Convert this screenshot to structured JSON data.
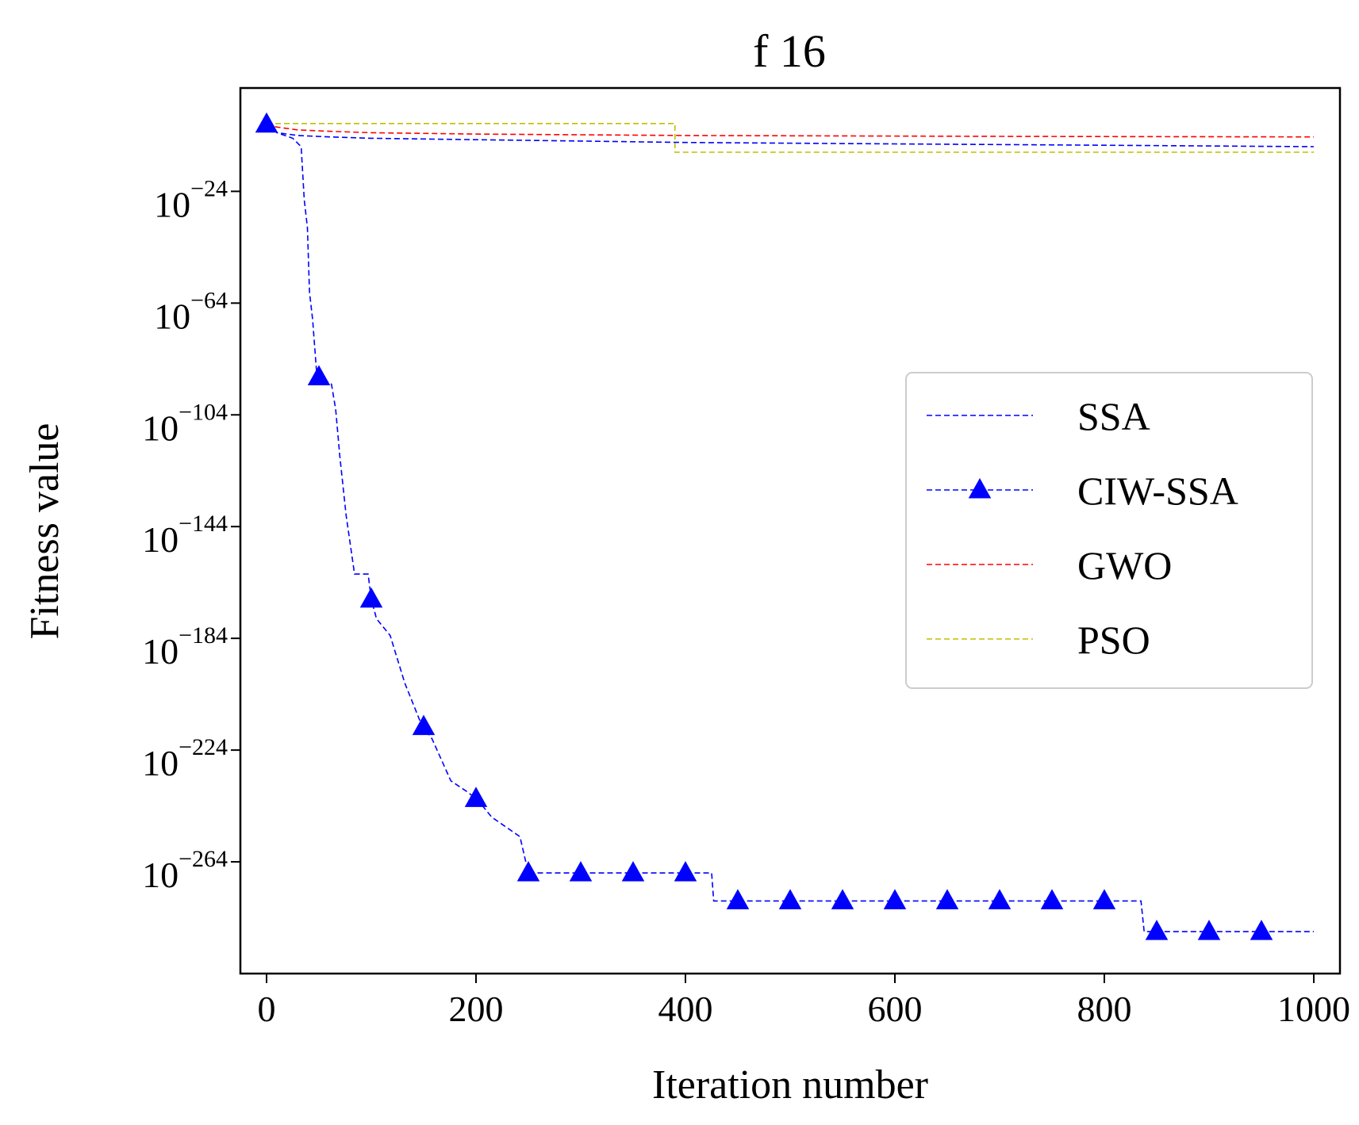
{
  "chart_data": {
    "type": "line",
    "title": "f 16",
    "xlabel": "Iteration number",
    "ylabel": "Fitness value",
    "y_scale": "log",
    "xlim": [
      -25,
      1025
    ],
    "ylim_exponent": [
      -304,
      13
    ],
    "x_ticks": [
      0,
      200,
      400,
      600,
      800,
      1000
    ],
    "x_tick_labels": [
      "0",
      "200",
      "400",
      "600",
      "800",
      "1000"
    ],
    "y_ticks_exponent": [
      -24,
      -64,
      -104,
      -144,
      -184,
      -224,
      -264
    ],
    "y_tick_base": "10",
    "y_tick_exponent_labels": [
      "−24",
      "−64",
      "−104",
      "−144",
      "−184",
      "−224",
      "−264"
    ],
    "grid": false,
    "legend_position": "center-right",
    "series": [
      {
        "name": "SSA",
        "color": "#0000ff",
        "style": "dashed",
        "marker": "none",
        "points_log10": [
          [
            0,
            0
          ],
          [
            10,
            -3
          ],
          [
            30,
            -4
          ],
          [
            60,
            -4.5
          ],
          [
            100,
            -5
          ],
          [
            200,
            -5.5
          ],
          [
            300,
            -6
          ],
          [
            400,
            -6.5
          ],
          [
            600,
            -7
          ],
          [
            800,
            -7.5
          ],
          [
            1000,
            -8
          ]
        ]
      },
      {
        "name": "CIW-SSA",
        "color": "#0000ff",
        "style": "dashed",
        "marker": "triangle",
        "points_log10": [
          [
            0,
            0
          ],
          [
            10,
            -3
          ],
          [
            25,
            -5
          ],
          [
            33,
            -8
          ],
          [
            36,
            -27
          ],
          [
            39,
            -37
          ],
          [
            41,
            -60
          ],
          [
            44,
            -70
          ],
          [
            48,
            -90
          ],
          [
            62,
            -93
          ],
          [
            66,
            -102
          ],
          [
            70,
            -119
          ],
          [
            76,
            -140
          ],
          [
            84,
            -161
          ],
          [
            97,
            -161
          ],
          [
            100,
            -170
          ],
          [
            105,
            -177
          ],
          [
            118,
            -183
          ],
          [
            132,
            -200
          ],
          [
            147,
            -214
          ],
          [
            158,
            -220
          ],
          [
            176,
            -235
          ],
          [
            192,
            -239
          ],
          [
            202,
            -242
          ],
          [
            215,
            -248
          ],
          [
            242,
            -255
          ],
          [
            250,
            -268
          ],
          [
            425,
            -268
          ],
          [
            427,
            -278
          ],
          [
            835,
            -278
          ],
          [
            838,
            -289
          ],
          [
            1000,
            -289
          ]
        ],
        "markers_x": [
          0,
          50,
          100,
          150,
          200,
          250,
          300,
          350,
          400,
          450,
          500,
          550,
          600,
          650,
          700,
          750,
          800,
          850,
          900,
          950
        ]
      },
      {
        "name": "GWO",
        "color": "#ff0000",
        "style": "dashed",
        "marker": "none",
        "points_log10": [
          [
            0,
            0
          ],
          [
            10,
            -1
          ],
          [
            30,
            -2
          ],
          [
            60,
            -2.5
          ],
          [
            100,
            -3
          ],
          [
            200,
            -3.5
          ],
          [
            400,
            -4
          ],
          [
            700,
            -4.3
          ],
          [
            1000,
            -4.5
          ]
        ]
      },
      {
        "name": "PSO",
        "color": "#bfbf00",
        "style": "dashed",
        "marker": "none",
        "points_log10": [
          [
            0,
            0.3
          ],
          [
            390,
            0.3
          ],
          [
            390,
            -10
          ],
          [
            1000,
            -10
          ]
        ]
      }
    ]
  }
}
